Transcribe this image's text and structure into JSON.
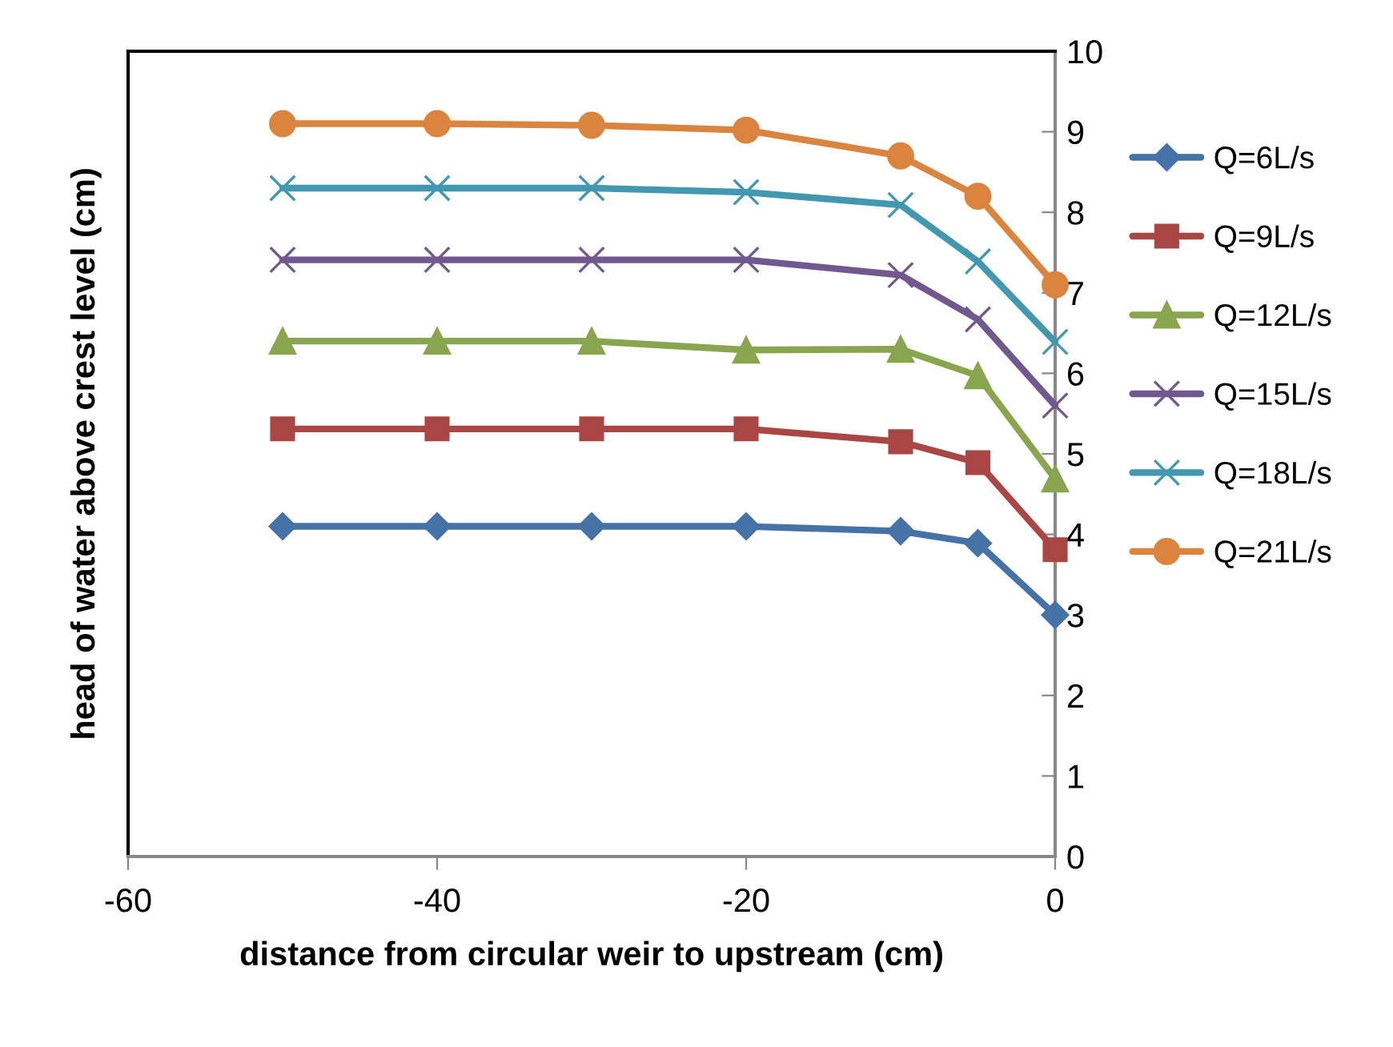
{
  "chart_data": {
    "type": "line",
    "xlabel": "distance from circular weir to upstream (cm)",
    "ylabel": "head of water above crest level (cm)",
    "x": [
      -50,
      -40,
      -30,
      -20,
      -10,
      -5,
      0
    ],
    "xlim": [
      -60,
      0
    ],
    "xticks": [
      -60,
      -40,
      -20,
      0
    ],
    "ylim": [
      0,
      10
    ],
    "yticks": [
      0,
      1,
      2,
      3,
      4,
      5,
      6,
      7,
      8,
      9,
      10
    ],
    "grid": false,
    "legend": "right",
    "line_style": "solid",
    "series": [
      {
        "name": "Q=6L/s",
        "color": "#4572a7",
        "marker": "diamond",
        "values": [
          4.1,
          4.1,
          4.1,
          4.1,
          4.04,
          3.89,
          3.0
        ]
      },
      {
        "name": "Q=9L/s",
        "color": "#aa4643",
        "marker": "square",
        "values": [
          5.31,
          5.31,
          5.31,
          5.31,
          5.15,
          4.89,
          3.81
        ]
      },
      {
        "name": "Q=12L/s",
        "color": "#89a54e",
        "marker": "triangle",
        "values": [
          6.4,
          6.4,
          6.4,
          6.29,
          6.3,
          5.97,
          4.69
        ]
      },
      {
        "name": "Q=15L/s",
        "color": "#71588f",
        "marker": "cross",
        "values": [
          7.41,
          7.41,
          7.41,
          7.41,
          7.22,
          6.67,
          5.6
        ]
      },
      {
        "name": "Q=18L/s",
        "color": "#4198af",
        "marker": "cross",
        "values": [
          8.3,
          8.3,
          8.3,
          8.25,
          8.09,
          7.39,
          6.39
        ]
      },
      {
        "name": "Q=21L/s",
        "color": "#db843d",
        "marker": "circle",
        "values": [
          9.1,
          9.1,
          9.08,
          9.02,
          8.7,
          8.2,
          7.1
        ]
      }
    ]
  }
}
